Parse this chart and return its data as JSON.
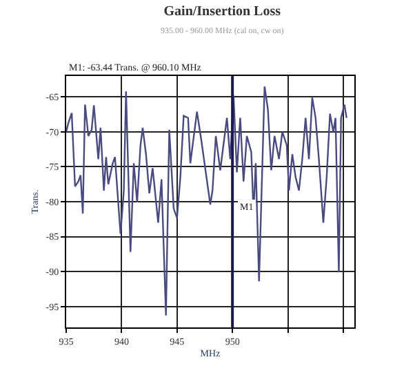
{
  "chart_data": {
    "type": "line",
    "title": "Gain/Insertion Loss",
    "subtitle": "935.00 - 960.00 MHz (cal on, cw on)",
    "xlabel": "MHz",
    "ylabel": "Trans.",
    "annotations": [
      "M1: -63.44 Trans. @ 960.10 MHz"
    ],
    "ref_lines": [
      {
        "axis": "x",
        "value": 950,
        "label": "M1",
        "color": "#1a1a50"
      }
    ],
    "x": [
      935.0,
      935.2,
      935.5,
      935.8,
      936.1,
      936.3,
      936.5,
      936.7,
      937.0,
      937.3,
      937.5,
      937.9,
      938.1,
      938.4,
      938.6,
      938.8,
      939.2,
      939.4,
      939.9,
      940.2,
      940.4,
      940.8,
      941.1,
      941.4,
      941.7,
      941.9,
      942.2,
      942.5,
      942.8,
      943.3,
      943.6,
      944.0,
      944.3,
      944.7,
      945.0,
      945.3,
      945.6,
      946.0,
      946.2,
      946.8,
      947.2,
      948.0,
      948.2,
      948.5,
      948.9,
      949.5,
      949.8,
      950.1,
      950.4,
      950.7,
      951.0,
      951.3,
      951.7,
      951.9,
      952.1,
      952.4,
      952.9,
      953.2,
      953.5,
      953.8,
      954.2,
      954.5,
      954.9,
      955.1,
      955.4,
      955.7,
      956.0,
      956.3,
      956.6,
      956.9,
      957.2,
      957.5,
      957.8,
      958.2,
      958.5,
      958.8,
      959.1,
      959.3,
      959.6,
      959.8,
      960.1,
      960.3
    ],
    "series": [
      {
        "color": "#4a4a80",
        "values": [
          -70,
          -68.7,
          -67.3,
          -77.8,
          -77.1,
          -76.2,
          -81.7,
          -66.1,
          -70.6,
          -69.7,
          -66.2,
          -73.9,
          -69.4,
          -78.4,
          -73.6,
          -77.5,
          -74.5,
          -73.6,
          -84.6,
          -78.4,
          -64.2,
          -87.2,
          -74.5,
          -80.1,
          -72,
          -69.4,
          -73.2,
          -78.8,
          -75.2,
          -83,
          -76.8,
          -96.3,
          -69.7,
          -81,
          -82.3,
          -76.5,
          -67.7,
          -68,
          -74.5,
          -67.1,
          -71.3,
          -80.4,
          -78.4,
          -70.6,
          -75.5,
          -68,
          -73.9,
          -64.8,
          -75.8,
          -68,
          -77.1,
          -70.6,
          -72.9,
          -81.7,
          -74.5,
          -91.4,
          -63.5,
          -66.8,
          -75.5,
          -70.6,
          -73.9,
          -70,
          -71.9,
          -78.4,
          -73.2,
          -76.5,
          -78.4,
          -73.9,
          -68,
          -73.9,
          -65.1,
          -68,
          -73.9,
          -83,
          -76.5,
          -67.4,
          -70,
          -68,
          -90.1,
          -68,
          -66.1,
          -68
        ]
      }
    ],
    "xlim": [
      935,
      961
    ],
    "xticks": [
      935,
      940,
      945,
      950,
      {
        "value": 955,
        "label": null
      },
      {
        "value": 960,
        "label": null
      }
    ],
    "ylim": [
      -98,
      -62
    ],
    "yticks": [
      -65,
      -70,
      -75,
      -80,
      -85,
      -90,
      -95
    ],
    "grid": true,
    "marker": "none",
    "line_style": "solid"
  }
}
